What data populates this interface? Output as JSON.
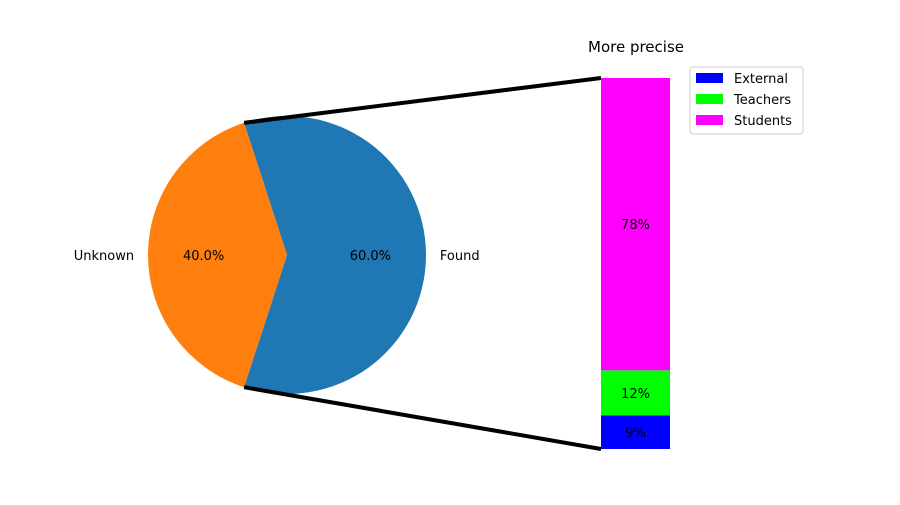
{
  "chart_data": [
    {
      "type": "pie",
      "slices": [
        {
          "label": "Found",
          "value": 60.0,
          "pct_label": "60.0%",
          "color": "#1f77b4"
        },
        {
          "label": "Unknown",
          "value": 40.0,
          "pct_label": "40.0%",
          "color": "#ff7f0e"
        }
      ]
    },
    {
      "type": "bar",
      "stacked": true,
      "title": "More precise",
      "series": [
        {
          "name": "External",
          "value": 9,
          "label": "9%",
          "color": "#0000ff"
        },
        {
          "name": "Teachers",
          "value": 12,
          "label": "12%",
          "color": "#00ff00"
        },
        {
          "name": "Students",
          "value": 78,
          "label": "78%",
          "color": "#ff00ff"
        }
      ],
      "legend_position": "top-right"
    }
  ]
}
